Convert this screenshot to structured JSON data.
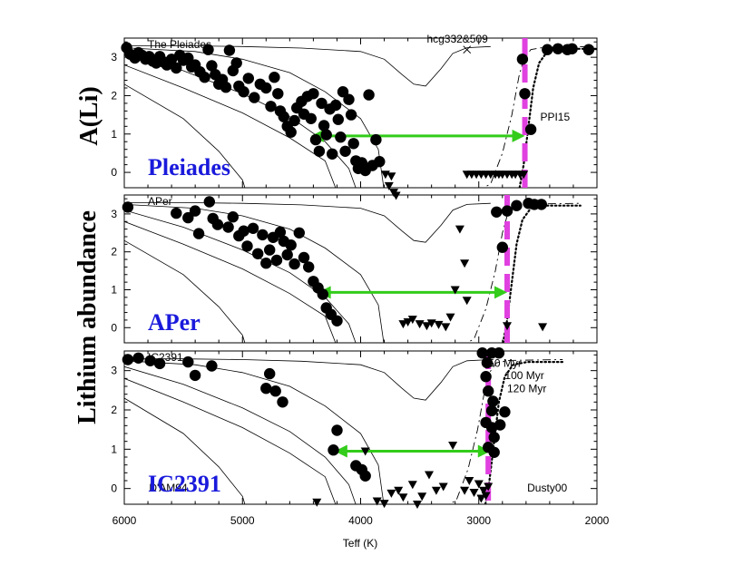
{
  "chart_data": {
    "type": "scatter",
    "xlabel": "Teff (K)",
    "ylabel": "Lithium abundance",
    "xlim": [
      6000,
      2000
    ],
    "x_ticks": [
      6000,
      5000,
      4000,
      3000,
      2000
    ],
    "colors": {
      "points": "#000000",
      "arrow": "#33cc1a",
      "ldb": "#e040e0",
      "label": "#1a1adc"
    },
    "panels": [
      {
        "name": "Pleiades",
        "tag": "A(Li)",
        "corner_label": "The Pleiades",
        "ylim": [
          -0.4,
          3.5
        ],
        "y_ticks": [
          0,
          1,
          2,
          3
        ],
        "y_tick_labels": [
          "0",
          "1",
          "2",
          "3"
        ],
        "annotations": [
          {
            "text": "hcg332&509",
            "x": 3440,
            "y": 3.38
          },
          {
            "text": "PPI15",
            "x": 2480,
            "y": 1.35
          }
        ],
        "cross": {
          "x": 3100,
          "y": 3.2
        },
        "arrow": {
          "from": 4420,
          "to": 2610,
          "y": 0.95
        },
        "ldb_teff": 2610,
        "detections": [
          [
            5980,
            3.25
          ],
          [
            5950,
            3.08
          ],
          [
            5910,
            2.98
          ],
          [
            5880,
            3.12
          ],
          [
            5850,
            3.05
          ],
          [
            5820,
            2.95
          ],
          [
            5790,
            3.02
          ],
          [
            5760,
            2.9
          ],
          [
            5730,
            2.85
          ],
          [
            5700,
            3.02
          ],
          [
            5670,
            2.88
          ],
          [
            5640,
            2.8
          ],
          [
            5600,
            2.95
          ],
          [
            5560,
            2.72
          ],
          [
            5530,
            3.05
          ],
          [
            5500,
            2.92
          ],
          [
            5460,
            2.98
          ],
          [
            5430,
            2.75
          ],
          [
            5400,
            2.8
          ],
          [
            5360,
            2.62
          ],
          [
            5320,
            2.48
          ],
          [
            5290,
            3.2
          ],
          [
            5260,
            2.78
          ],
          [
            5230,
            2.55
          ],
          [
            5200,
            2.3
          ],
          [
            5170,
            2.42
          ],
          [
            5140,
            2.22
          ],
          [
            5110,
            3.18
          ],
          [
            5080,
            2.65
          ],
          [
            5050,
            2.85
          ],
          [
            5030,
            2.25
          ],
          [
            4990,
            2.1
          ],
          [
            4950,
            2.45
          ],
          [
            4900,
            1.95
          ],
          [
            4850,
            2.3
          ],
          [
            4800,
            2.2
          ],
          [
            4760,
            1.72
          ],
          [
            4730,
            2.48
          ],
          [
            4700,
            2.05
          ],
          [
            4680,
            1.6
          ],
          [
            4650,
            1.45
          ],
          [
            4620,
            1.2
          ],
          [
            4590,
            1.05
          ],
          [
            4560,
            1.35
          ],
          [
            4540,
            1.68
          ],
          [
            4500,
            1.85
          ],
          [
            4480,
            1.52
          ],
          [
            4450,
            1.98
          ],
          [
            4420,
            1.4
          ],
          [
            4400,
            2.05
          ],
          [
            4380,
            0.85
          ],
          [
            4350,
            0.55
          ],
          [
            4330,
            1.8
          ],
          [
            4310,
            1.22
          ],
          [
            4290,
            0.98
          ],
          [
            4260,
            1.65
          ],
          [
            4240,
            0.48
          ],
          [
            4210,
            1.75
          ],
          [
            4190,
            1.38
          ],
          [
            4170,
            0.92
          ],
          [
            4150,
            2.1
          ],
          [
            4130,
            0.55
          ],
          [
            4100,
            1.9
          ],
          [
            4080,
            1.5
          ],
          [
            4060,
            0.75
          ],
          [
            4040,
            0.3
          ],
          [
            4020,
            0.1
          ],
          [
            3990,
            0.25
          ],
          [
            3960,
            0.05
          ],
          [
            3930,
            2.02
          ],
          [
            3900,
            0.18
          ],
          [
            3870,
            0.85
          ],
          [
            3840,
            0.28
          ],
          [
            2630,
            2.95
          ],
          [
            2610,
            2.05
          ],
          [
            2560,
            1.12
          ],
          [
            2420,
            3.2
          ],
          [
            2330,
            3.22
          ],
          [
            2250,
            3.2
          ],
          [
            2210,
            3.22
          ],
          [
            2070,
            3.2
          ]
        ],
        "upper_limits": [
          [
            3790,
            -0.05
          ],
          [
            3760,
            -0.35
          ],
          [
            3740,
            -0.1
          ],
          [
            3720,
            -0.52
          ],
          [
            3700,
            -0.6
          ],
          [
            3100,
            -0.05
          ],
          [
            3060,
            -0.05
          ],
          [
            3020,
            -0.05
          ],
          [
            2980,
            -0.05
          ],
          [
            2940,
            -0.05
          ],
          [
            2900,
            -0.05
          ],
          [
            2860,
            -0.05
          ],
          [
            2830,
            -0.05
          ],
          [
            2800,
            -0.05
          ],
          [
            2760,
            -0.05
          ],
          [
            2720,
            -0.05
          ],
          [
            2690,
            -0.05
          ],
          [
            2650,
            -0.05
          ],
          [
            2620,
            -0.05
          ]
        ]
      },
      {
        "name": "APer",
        "tag": "",
        "corner_label": "APer",
        "ylim": [
          -0.4,
          3.5
        ],
        "y_ticks": [
          0,
          1,
          2,
          3
        ],
        "y_tick_labels": [
          "0",
          "1",
          "2",
          "3"
        ],
        "annotations": [],
        "arrow": {
          "from": 4360,
          "to": 2760,
          "y": 0.93
        },
        "ldb_teff": 2760,
        "detections": [
          [
            5970,
            3.18
          ],
          [
            5560,
            3.02
          ],
          [
            5460,
            2.9
          ],
          [
            5400,
            3.08
          ],
          [
            5370,
            2.48
          ],
          [
            5280,
            3.32
          ],
          [
            5250,
            2.88
          ],
          [
            5210,
            2.72
          ],
          [
            5120,
            2.65
          ],
          [
            5080,
            2.92
          ],
          [
            5030,
            2.42
          ],
          [
            4990,
            2.55
          ],
          [
            4960,
            2.15
          ],
          [
            4910,
            2.62
          ],
          [
            4870,
            1.95
          ],
          [
            4830,
            2.45
          ],
          [
            4800,
            1.7
          ],
          [
            4770,
            2.05
          ],
          [
            4740,
            2.38
          ],
          [
            4710,
            1.78
          ],
          [
            4680,
            2.52
          ],
          [
            4650,
            2.28
          ],
          [
            4620,
            1.92
          ],
          [
            4590,
            2.18
          ],
          [
            4560,
            1.68
          ],
          [
            4520,
            2.5
          ],
          [
            4480,
            1.85
          ],
          [
            4440,
            1.6
          ],
          [
            4400,
            1.22
          ],
          [
            4360,
            1.05
          ],
          [
            4320,
            0.88
          ],
          [
            4290,
            0.52
          ],
          [
            4250,
            0.35
          ],
          [
            4200,
            0.18
          ],
          [
            2850,
            3.05
          ],
          [
            2800,
            2.12
          ],
          [
            2760,
            3.08
          ],
          [
            2680,
            3.22
          ],
          [
            2580,
            3.28
          ],
          [
            2530,
            3.25
          ],
          [
            2470,
            3.25
          ]
        ],
        "upper_limits": [
          [
            3640,
            0.1
          ],
          [
            3600,
            0.15
          ],
          [
            3560,
            0.22
          ],
          [
            3500,
            0.1
          ],
          [
            3440,
            0.05
          ],
          [
            3400,
            0.12
          ],
          [
            3340,
            0.08
          ],
          [
            3280,
            0.02
          ],
          [
            3240,
            0.28
          ],
          [
            3200,
            1.0
          ],
          [
            3160,
            2.6
          ],
          [
            3120,
            1.7
          ],
          [
            3100,
            0.72
          ],
          [
            2760,
            0.05
          ],
          [
            2460,
            0.02
          ]
        ]
      },
      {
        "name": "IC2391",
        "tag": "",
        "corner_label": "IC2391",
        "ylim": [
          -0.4,
          3.5
        ],
        "y_ticks": [
          0,
          1,
          2,
          3
        ],
        "y_tick_labels": [
          "0",
          "1",
          "2",
          "3"
        ],
        "annotations": [
          {
            "text": "50 Myr",
            "x": 2920,
            "y": 3.1
          },
          {
            "text": "100 Myr",
            "x": 2780,
            "y": 2.78
          },
          {
            "text": "120 Myr",
            "x": 2760,
            "y": 2.45
          },
          {
            "text": "D'AM94",
            "x": 5790,
            "y": -0.08
          },
          {
            "text": "Dusty00",
            "x": 2590,
            "y": -0.08
          }
        ],
        "arrow": {
          "from": 4220,
          "to": 2900,
          "y": 0.95
        },
        "ldb_teff": 2920,
        "detections": [
          [
            5970,
            3.28
          ],
          [
            5880,
            3.32
          ],
          [
            5780,
            3.25
          ],
          [
            5700,
            3.18
          ],
          [
            5460,
            3.22
          ],
          [
            5400,
            2.88
          ],
          [
            5260,
            3.12
          ],
          [
            4770,
            2.92
          ],
          [
            4800,
            2.55
          ],
          [
            4720,
            2.48
          ],
          [
            4660,
            2.2
          ],
          [
            4200,
            1.48
          ],
          [
            4230,
            0.98
          ],
          [
            4040,
            0.58
          ],
          [
            3990,
            0.48
          ],
          [
            3960,
            0.32
          ],
          [
            2970,
            3.45
          ],
          [
            2930,
            3.2
          ],
          [
            2890,
            3.45
          ],
          [
            2830,
            3.45
          ],
          [
            2940,
            2.85
          ],
          [
            2920,
            2.48
          ],
          [
            2890,
            1.98
          ],
          [
            2940,
            1.68
          ],
          [
            2890,
            1.55
          ],
          [
            2870,
            1.3
          ],
          [
            2920,
            1.05
          ],
          [
            2870,
            0.92
          ],
          [
            2780,
            1.95
          ],
          [
            2880,
            2.22
          ],
          [
            2820,
            1.62
          ]
        ],
        "upper_limits": [
          [
            4370,
            -0.35
          ],
          [
            3960,
            0.95
          ],
          [
            3860,
            -0.32
          ],
          [
            3800,
            -0.38
          ],
          [
            3740,
            -0.12
          ],
          [
            3680,
            -0.05
          ],
          [
            3640,
            -0.22
          ],
          [
            3560,
            0.1
          ],
          [
            3520,
            -0.4
          ],
          [
            3480,
            -0.2
          ],
          [
            3420,
            0.35
          ],
          [
            3360,
            -0.05
          ],
          [
            3300,
            0.05
          ],
          [
            3220,
            1.1
          ],
          [
            3120,
            -0.05
          ],
          [
            3080,
            0.2
          ],
          [
            3040,
            -0.1
          ],
          [
            3000,
            0.12
          ],
          [
            2980,
            -0.25
          ],
          [
            2960,
            -0.05
          ],
          [
            2940,
            -0.18
          ],
          [
            2920,
            0.05
          ]
        ]
      }
    ]
  }
}
